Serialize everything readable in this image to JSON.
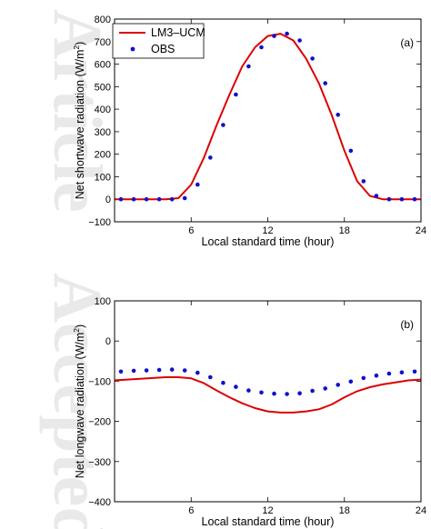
{
  "watermark": {
    "text_top": "Article",
    "text_bottom": "Accepted",
    "color": "#e9e9e9"
  },
  "chart_data": [
    {
      "type": "line",
      "panel_tag": "(a)",
      "xlabel": "Local standard time (hour)",
      "ylabel_main": "Net shortwave radiation (W/m",
      "ylabel_sup": "2",
      "ylabel_end": ")",
      "xlim": [
        0,
        24
      ],
      "ylim": [
        -100,
        800
      ],
      "xticks": [
        6,
        12,
        18,
        24
      ],
      "yticks": [
        -100,
        0,
        100,
        200,
        300,
        400,
        500,
        600,
        700,
        800
      ],
      "legend": {
        "placement": "top-left"
      },
      "series": [
        {
          "name": "LM3–UCM",
          "style": "line",
          "color": "#dd0000",
          "x": [
            0,
            1,
            2,
            3,
            4,
            5,
            6,
            7,
            8,
            9,
            10,
            11,
            12,
            13,
            14,
            15,
            16,
            17,
            18,
            19,
            20,
            21,
            22,
            23,
            24
          ],
          "y": [
            0,
            0,
            0,
            0,
            0,
            5,
            65,
            185,
            330,
            465,
            590,
            675,
            725,
            735,
            705,
            625,
            515,
            375,
            215,
            80,
            15,
            0,
            0,
            0,
            0
          ]
        },
        {
          "name": "OBS",
          "style": "dots",
          "color": "#1010cc",
          "x": [
            0.5,
            1.5,
            2.5,
            3.5,
            4.5,
            5.5,
            6.5,
            7.5,
            8.5,
            9.5,
            10.5,
            11.5,
            12.5,
            13.5,
            14.5,
            15.5,
            16.5,
            17.5,
            18.5,
            19.5,
            20.5,
            21.5,
            22.5,
            23.5
          ],
          "y": [
            0,
            0,
            0,
            0,
            0,
            5,
            65,
            185,
            330,
            465,
            590,
            675,
            725,
            735,
            705,
            625,
            515,
            375,
            215,
            80,
            15,
            0,
            0,
            0
          ]
        }
      ]
    },
    {
      "type": "line",
      "panel_tag": "(b)",
      "xlabel": "Local standard time (hour)",
      "ylabel_main": "Net longwave radiation (W/m",
      "ylabel_sup": "2",
      "ylabel_end": ")",
      "xlim": [
        0,
        24
      ],
      "ylim": [
        -400,
        100
      ],
      "xticks": [
        6,
        12,
        18,
        24
      ],
      "yticks": [
        -400,
        -300,
        -200,
        -100,
        0,
        100
      ],
      "series": [
        {
          "style": "line",
          "color": "#dd0000",
          "x": [
            0,
            1,
            2,
            3,
            4,
            5,
            6,
            7,
            8,
            9,
            10,
            11,
            12,
            13,
            14,
            15,
            16,
            17,
            18,
            19,
            20,
            21,
            22,
            23,
            24
          ],
          "y": [
            -98,
            -96,
            -94,
            -92,
            -90,
            -90,
            -93,
            -105,
            -123,
            -140,
            -155,
            -167,
            -175,
            -178,
            -178,
            -175,
            -170,
            -158,
            -140,
            -125,
            -115,
            -108,
            -103,
            -98,
            -96
          ]
        },
        {
          "style": "dots",
          "color": "#1010cc",
          "x": [
            0.5,
            1.5,
            2.5,
            3.5,
            4.5,
            5.5,
            6.5,
            7.5,
            8.5,
            9.5,
            10.5,
            11.5,
            12.5,
            13.5,
            14.5,
            15.5,
            16.5,
            17.5,
            18.5,
            19.5,
            20.5,
            21.5,
            22.5,
            23.5
          ],
          "y": [
            -76,
            -74,
            -73,
            -72,
            -71,
            -73,
            -79,
            -90,
            -104,
            -114,
            -123,
            -128,
            -131,
            -132,
            -130,
            -124,
            -118,
            -109,
            -101,
            -92,
            -86,
            -81,
            -78,
            -76
          ]
        }
      ]
    }
  ]
}
